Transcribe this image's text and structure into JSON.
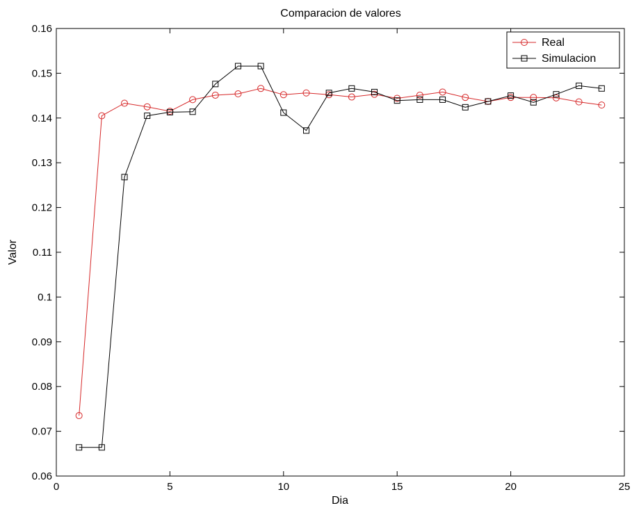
{
  "chart_data": {
    "type": "line",
    "title": "Comparacion de valores",
    "xlabel": "Dia",
    "ylabel": "Valor",
    "xlim": [
      0,
      25
    ],
    "ylim": [
      0.06,
      0.16
    ],
    "x_ticks": [
      "0",
      "5",
      "10",
      "15",
      "20",
      "25"
    ],
    "y_ticks": [
      "0.06",
      "0.07",
      "0.08",
      "0.09",
      "0.1",
      "0.11",
      "0.12",
      "0.13",
      "0.14",
      "0.15",
      "0.16"
    ],
    "grid": false,
    "legend_position": "top-right",
    "x": [
      1,
      2,
      3,
      4,
      5,
      6,
      7,
      8,
      9,
      10,
      11,
      12,
      13,
      14,
      15,
      16,
      17,
      18,
      19,
      20,
      21,
      22,
      23,
      24
    ],
    "series": [
      {
        "name": "Real",
        "color": "#d62728",
        "marker": "circle",
        "values": [
          0.0735,
          0.1405,
          0.1433,
          0.1425,
          0.1415,
          0.1441,
          0.1451,
          0.1454,
          0.1466,
          0.1452,
          0.1456,
          0.1452,
          0.1447,
          0.1453,
          0.1444,
          0.1451,
          0.1458,
          0.1446,
          0.1437,
          0.1446,
          0.1446,
          0.1445,
          0.1436,
          0.1429
        ]
      },
      {
        "name": "Simulacion",
        "color": "#000000",
        "marker": "square",
        "values": [
          0.0664,
          0.0664,
          0.1268,
          0.1405,
          0.1413,
          0.1414,
          0.1476,
          0.1516,
          0.1516,
          0.1412,
          0.1372,
          0.1456,
          0.1466,
          0.1458,
          0.1439,
          0.1441,
          0.1441,
          0.1424,
          0.1437,
          0.145,
          0.1435,
          0.1453,
          0.1472,
          0.1466
        ]
      }
    ]
  }
}
